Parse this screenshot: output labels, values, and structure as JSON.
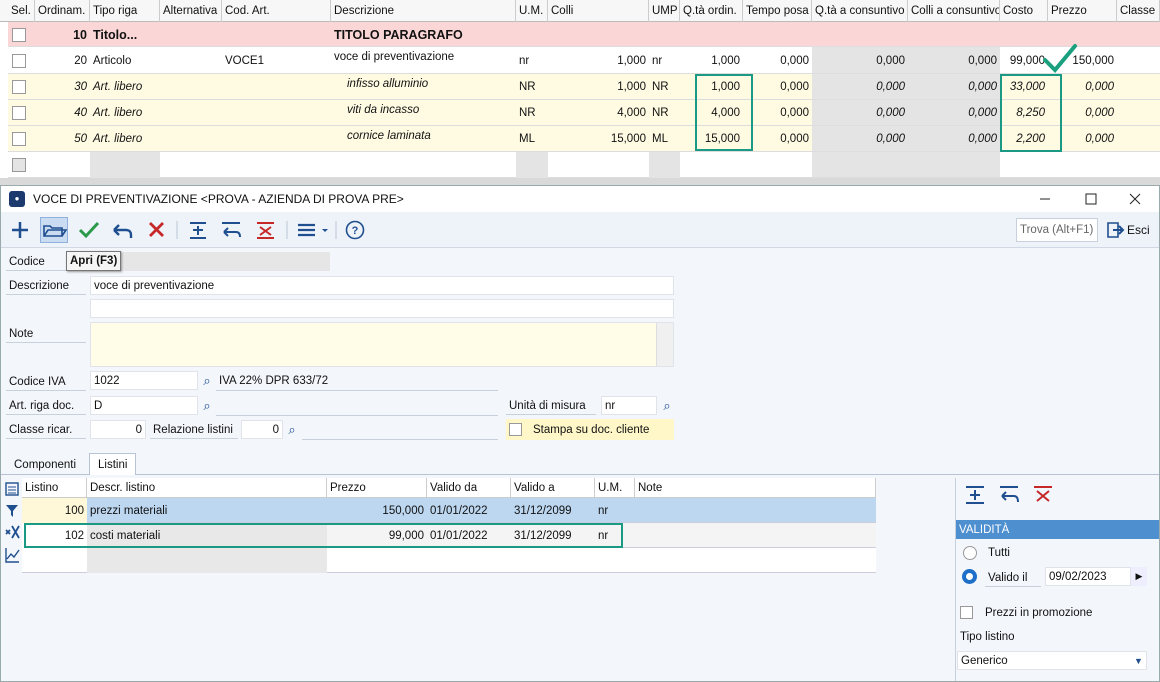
{
  "top_grid": {
    "columns": [
      "Sel.",
      "Ordinam.",
      "Tipo riga",
      "Alternativa",
      "Cod. Art.",
      "Descrizione",
      "U.M.",
      "Colli",
      "UMP",
      "Q.tà ordin.",
      "Tempo posa",
      "Q.tà a consuntivo",
      "Colli a consuntivo",
      "Costo",
      "Prezzo",
      "Classe r"
    ],
    "rows": [
      [
        null,
        "10",
        "Titolo...",
        null,
        null,
        "TITOLO PARAGRAFO",
        null,
        null,
        null,
        null,
        null,
        null,
        null,
        null,
        null,
        null
      ],
      [
        null,
        "20",
        "Articolo",
        null,
        "VOCE1",
        "voce di preventivazione",
        "nr",
        "1,000",
        "nr",
        "1,000",
        "0,000",
        "0,000",
        "0,000",
        "99,000",
        "150,000",
        null
      ],
      [
        null,
        "30",
        "Art. libero",
        null,
        null,
        "infisso alluminio",
        "NR",
        "1,000",
        "NR",
        "1,000",
        "0,000",
        "0,000",
        "0,000",
        "33,000",
        "0,000",
        null
      ],
      [
        null,
        "40",
        "Art. libero",
        null,
        null,
        "viti da incasso",
        "NR",
        "4,000",
        "NR",
        "4,000",
        "0,000",
        "0,000",
        "0,000",
        "8,250",
        "0,000",
        null
      ],
      [
        null,
        "50",
        "Art. libero",
        null,
        null,
        "cornice laminata",
        "ML",
        "15,000",
        "ML",
        "15,000",
        "0,000",
        "0,000",
        "0,000",
        "2,200",
        "0,000",
        null
      ]
    ]
  },
  "window": {
    "title": "VOCE DI PREVENTIVAZIONE <PROVA - AZIENDA DI PROVA PRE>",
    "search": "Trova (Alt+F1)",
    "exit": "Esci",
    "tooltip": "Apri (F3)"
  },
  "form": {
    "codice_label": "Codice",
    "descrizione_label": "Descrizione",
    "descrizione": "voce di preventivazione",
    "note_label": "Note",
    "codice_iva_label": "Codice IVA",
    "codice_iva": "1022",
    "codice_iva_desc": "IVA 22% DPR 633/72",
    "art_riga_label": "Art. riga doc.",
    "art_riga": "D",
    "um_label": "Unità di misura",
    "um": "nr",
    "classe_ricar_label": "Classe ricar.",
    "classe_ricar": "0",
    "relazione_label": "Relazione listini",
    "relazione": "0",
    "stampa_label": "Stampa su doc. cliente"
  },
  "tabs": [
    "Componenti",
    "Listini"
  ],
  "listini_grid": {
    "columns": [
      "Listino",
      "Descr. listino",
      "Prezzo",
      "Valido da",
      "Valido a",
      "U.M.",
      "Note"
    ],
    "rows": [
      [
        "100",
        "prezzi materiali",
        "150,000",
        "01/01/2022",
        "31/12/2099",
        "nr",
        null
      ],
      [
        "102",
        "costi materiali",
        "99,000",
        "01/01/2022",
        "31/12/2099",
        "nr",
        null
      ]
    ]
  },
  "side_panel": {
    "header": "VALIDITÀ",
    "option_all": "Tutti",
    "option_valid": "Valido il",
    "valid_date": "09/02/2023",
    "promo": "Prezzi in promozione",
    "tipo_label": "Tipo listino",
    "tipo": "Generico"
  }
}
